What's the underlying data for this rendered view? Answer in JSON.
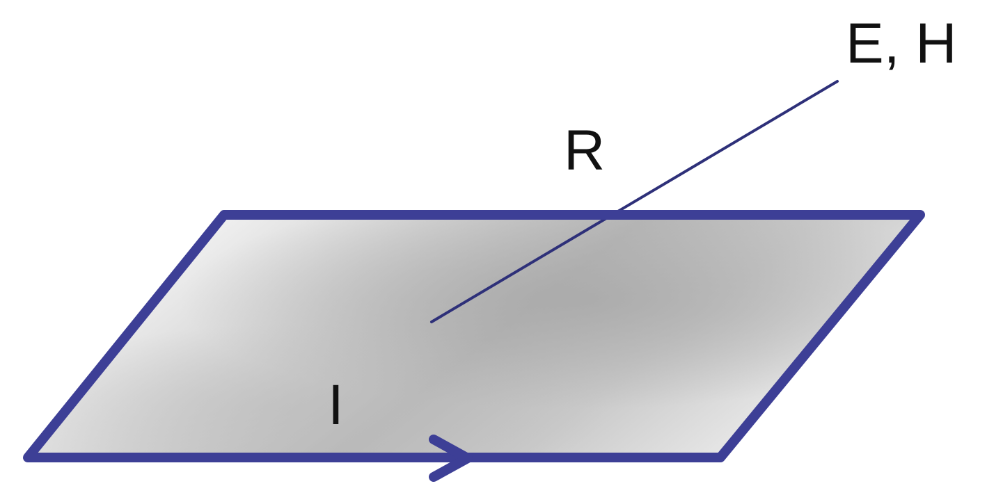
{
  "labels": {
    "field_point": "E, H",
    "distance": "R",
    "current": "I"
  },
  "colors": {
    "loop": "#3d3f96",
    "radius_line": "#2e3079",
    "text": "#111111",
    "surface_light": "#ffffff",
    "surface_dark": "#a9a9a9"
  }
}
